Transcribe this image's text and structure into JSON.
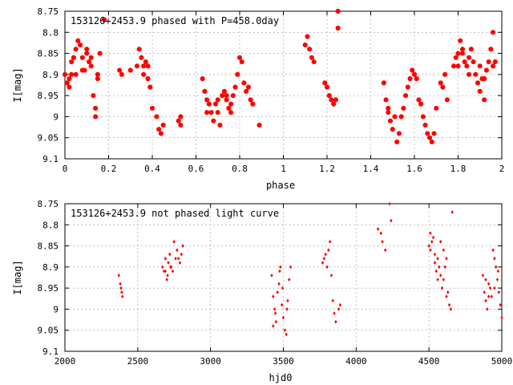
{
  "chart_data": [
    {
      "type": "scatter",
      "title": "153126+2453.9 phased with P=458.0day",
      "xlabel": "phase",
      "ylabel": "I[mag]",
      "xlim": [
        0,
        2
      ],
      "ylim": [
        9.1,
        8.75
      ],
      "y_inverted": true,
      "xticks": [
        "0",
        "0.2",
        "0.4",
        "0.6",
        "0.8",
        "1",
        "1.2",
        "1.4",
        "1.6",
        "1.8",
        "2"
      ],
      "yticks": [
        "8.75",
        "8.8",
        "8.85",
        "8.9",
        "8.95",
        "9",
        "9.05",
        "9.1"
      ],
      "grid": true,
      "marker_color": "#ff0000",
      "points": [
        [
          0.0,
          8.9
        ],
        [
          0.01,
          8.92
        ],
        [
          0.02,
          8.93
        ],
        [
          0.02,
          8.91
        ],
        [
          0.03,
          8.87
        ],
        [
          0.04,
          8.86
        ],
        [
          0.05,
          8.84
        ],
        [
          0.06,
          8.82
        ],
        [
          0.07,
          8.83
        ],
        [
          0.08,
          8.86
        ],
        [
          0.09,
          8.89
        ],
        [
          0.1,
          8.85
        ],
        [
          0.11,
          8.87
        ],
        [
          0.12,
          8.86
        ],
        [
          0.13,
          8.95
        ],
        [
          0.14,
          8.98
        ],
        [
          0.14,
          9.0
        ],
        [
          0.15,
          8.91
        ],
        [
          0.16,
          8.85
        ],
        [
          0.18,
          8.77
        ],
        [
          0.03,
          8.9
        ],
        [
          0.05,
          8.9
        ],
        [
          0.08,
          8.89
        ],
        [
          0.1,
          8.84
        ],
        [
          0.12,
          8.88
        ],
        [
          0.15,
          8.9
        ],
        [
          0.3,
          8.89
        ],
        [
          0.33,
          8.88
        ],
        [
          0.34,
          8.84
        ],
        [
          0.35,
          8.86
        ],
        [
          0.36,
          8.88
        ],
        [
          0.37,
          8.87
        ],
        [
          0.38,
          8.91
        ],
        [
          0.39,
          8.93
        ],
        [
          0.4,
          8.98
        ],
        [
          0.42,
          9.0
        ],
        [
          0.43,
          9.03
        ],
        [
          0.44,
          9.04
        ],
        [
          0.45,
          9.02
        ],
        [
          0.36,
          8.9
        ],
        [
          0.38,
          8.88
        ],
        [
          0.25,
          8.89
        ],
        [
          0.26,
          8.9
        ],
        [
          0.52,
          9.01
        ],
        [
          0.53,
          9.02
        ],
        [
          0.53,
          9.0
        ],
        [
          0.63,
          8.91
        ],
        [
          0.64,
          8.94
        ],
        [
          0.65,
          8.96
        ],
        [
          0.66,
          8.97
        ],
        [
          0.67,
          8.99
        ],
        [
          0.68,
          9.01
        ],
        [
          0.69,
          8.97
        ],
        [
          0.7,
          8.99
        ],
        [
          0.71,
          9.02
        ],
        [
          0.72,
          8.95
        ],
        [
          0.73,
          8.94
        ],
        [
          0.74,
          8.96
        ],
        [
          0.75,
          8.98
        ],
        [
          0.76,
          8.97
        ],
        [
          0.77,
          8.95
        ],
        [
          0.78,
          8.93
        ],
        [
          0.79,
          8.9
        ],
        [
          0.8,
          8.86
        ],
        [
          0.81,
          8.87
        ],
        [
          0.82,
          8.92
        ],
        [
          0.83,
          8.94
        ],
        [
          0.84,
          8.93
        ],
        [
          0.85,
          8.96
        ],
        [
          0.86,
          8.97
        ],
        [
          0.89,
          9.02
        ],
        [
          0.65,
          8.99
        ],
        [
          0.7,
          8.96
        ],
        [
          0.74,
          8.95
        ],
        [
          0.76,
          8.99
        ],
        [
          1.1,
          8.83
        ],
        [
          1.11,
          8.81
        ],
        [
          1.12,
          8.84
        ],
        [
          1.13,
          8.86
        ],
        [
          1.14,
          8.87
        ],
        [
          1.19,
          8.92
        ],
        [
          1.2,
          8.93
        ],
        [
          1.21,
          8.95
        ],
        [
          1.22,
          8.96
        ],
        [
          1.23,
          8.97
        ],
        [
          1.24,
          8.96
        ],
        [
          1.25,
          8.75
        ],
        [
          1.25,
          8.79
        ],
        [
          1.46,
          8.92
        ],
        [
          1.47,
          8.96
        ],
        [
          1.48,
          8.99
        ],
        [
          1.49,
          9.01
        ],
        [
          1.5,
          9.03
        ],
        [
          1.51,
          9.0
        ],
        [
          1.52,
          9.06
        ],
        [
          1.53,
          9.04
        ],
        [
          1.54,
          9.0
        ],
        [
          1.55,
          8.98
        ],
        [
          1.56,
          8.95
        ],
        [
          1.57,
          8.93
        ],
        [
          1.58,
          8.91
        ],
        [
          1.59,
          8.89
        ],
        [
          1.6,
          8.9
        ],
        [
          1.61,
          8.91
        ],
        [
          1.62,
          8.96
        ],
        [
          1.63,
          8.97
        ],
        [
          1.64,
          9.0
        ],
        [
          1.65,
          9.02
        ],
        [
          1.66,
          9.04
        ],
        [
          1.67,
          9.05
        ],
        [
          1.68,
          9.06
        ],
        [
          1.69,
          9.04
        ],
        [
          1.7,
          8.98
        ],
        [
          1.72,
          8.92
        ],
        [
          1.73,
          8.93
        ],
        [
          1.74,
          8.9
        ],
        [
          1.75,
          8.96
        ],
        [
          1.48,
          8.98
        ],
        [
          1.78,
          8.88
        ],
        [
          1.79,
          8.86
        ],
        [
          1.8,
          8.85
        ],
        [
          1.81,
          8.82
        ],
        [
          1.82,
          8.84
        ],
        [
          1.83,
          8.87
        ],
        [
          1.84,
          8.88
        ],
        [
          1.85,
          8.86
        ],
        [
          1.86,
          8.84
        ],
        [
          1.87,
          8.87
        ],
        [
          1.88,
          8.9
        ],
        [
          1.89,
          8.92
        ],
        [
          1.9,
          8.94
        ],
        [
          1.91,
          8.91
        ],
        [
          1.92,
          8.96
        ],
        [
          1.93,
          8.89
        ],
        [
          1.94,
          8.87
        ],
        [
          1.95,
          8.84
        ],
        [
          1.96,
          8.8
        ],
        [
          1.97,
          8.87
        ],
        [
          1.8,
          8.88
        ],
        [
          1.82,
          8.85
        ],
        [
          1.85,
          8.9
        ],
        [
          1.9,
          8.88
        ],
        [
          1.92,
          8.91
        ],
        [
          1.96,
          8.88
        ]
      ]
    },
    {
      "type": "scatter",
      "title": "153126+2453.9 not phased light curve",
      "xlabel": "hjd0",
      "ylabel": "I[mag]",
      "xlim": [
        2000,
        5000
      ],
      "ylim": [
        9.1,
        8.75
      ],
      "y_inverted": true,
      "xticks": [
        "2000",
        "2500",
        "3000",
        "3500",
        "4000",
        "4500",
        "5000"
      ],
      "yticks": [
        "8.75",
        "8.8",
        "8.85",
        "8.9",
        "8.95",
        "9",
        "9.05",
        "9.1"
      ],
      "grid": true,
      "marker_color": "#ff0000",
      "points": [
        [
          2370,
          8.92
        ],
        [
          2380,
          8.94
        ],
        [
          2385,
          8.95
        ],
        [
          2390,
          8.96
        ],
        [
          2395,
          8.97
        ],
        [
          2670,
          8.9
        ],
        [
          2680,
          8.91
        ],
        [
          2690,
          8.88
        ],
        [
          2700,
          8.93
        ],
        [
          2710,
          8.89
        ],
        [
          2720,
          8.87
        ],
        [
          2730,
          8.9
        ],
        [
          2740,
          8.91
        ],
        [
          2750,
          8.84
        ],
        [
          2760,
          8.88
        ],
        [
          2770,
          8.86
        ],
        [
          2780,
          8.88
        ],
        [
          2790,
          8.89
        ],
        [
          2800,
          8.87
        ],
        [
          2810,
          8.85
        ],
        [
          2690,
          8.91
        ],
        [
          2705,
          8.92
        ],
        [
          2725,
          8.9
        ],
        [
          3420,
          8.92
        ],
        [
          3430,
          8.97
        ],
        [
          3440,
          9.0
        ],
        [
          3450,
          9.03
        ],
        [
          3460,
          8.96
        ],
        [
          3470,
          8.94
        ],
        [
          3480,
          8.9
        ],
        [
          3490,
          8.99
        ],
        [
          3500,
          9.02
        ],
        [
          3510,
          9.05
        ],
        [
          3520,
          9.06
        ],
        [
          3530,
          8.98
        ],
        [
          3540,
          8.93
        ],
        [
          3550,
          8.9
        ],
        [
          3430,
          9.04
        ],
        [
          3445,
          9.01
        ],
        [
          3475,
          8.91
        ],
        [
          3495,
          8.95
        ],
        [
          3525,
          9.0
        ],
        [
          3770,
          8.89
        ],
        [
          3780,
          8.88
        ],
        [
          3790,
          8.87
        ],
        [
          3800,
          8.9
        ],
        [
          3810,
          8.86
        ],
        [
          3820,
          8.84
        ],
        [
          3830,
          8.92
        ],
        [
          3840,
          8.98
        ],
        [
          3850,
          9.01
        ],
        [
          3860,
          9.03
        ],
        [
          3880,
          9.0
        ],
        [
          3890,
          8.99
        ],
        [
          4150,
          8.81
        ],
        [
          4170,
          8.82
        ],
        [
          4180,
          8.84
        ],
        [
          4200,
          8.86
        ],
        [
          4230,
          8.75
        ],
        [
          4240,
          8.79
        ],
        [
          4500,
          8.85
        ],
        [
          4510,
          8.86
        ],
        [
          4520,
          8.84
        ],
        [
          4530,
          8.83
        ],
        [
          4540,
          8.89
        ],
        [
          4550,
          8.91
        ],
        [
          4560,
          8.88
        ],
        [
          4570,
          8.9
        ],
        [
          4580,
          8.92
        ],
        [
          4590,
          8.95
        ],
        [
          4600,
          8.93
        ],
        [
          4610,
          8.9
        ],
        [
          4620,
          8.88
        ],
        [
          4630,
          8.96
        ],
        [
          4640,
          8.99
        ],
        [
          4650,
          9.0
        ],
        [
          4660,
          8.77
        ],
        [
          4510,
          8.82
        ],
        [
          4540,
          8.87
        ],
        [
          4560,
          8.93
        ],
        [
          4580,
          8.84
        ],
        [
          4600,
          8.86
        ],
        [
          4620,
          8.97
        ],
        [
          4870,
          8.92
        ],
        [
          4880,
          8.96
        ],
        [
          4890,
          8.98
        ],
        [
          4900,
          9.0
        ],
        [
          4910,
          8.94
        ],
        [
          4920,
          8.95
        ],
        [
          4930,
          8.97
        ],
        [
          4940,
          8.86
        ],
        [
          4950,
          8.88
        ],
        [
          4960,
          8.9
        ],
        [
          4970,
          8.93
        ],
        [
          4980,
          8.96
        ],
        [
          4990,
          8.99
        ],
        [
          5000,
          9.02
        ],
        [
          4890,
          8.93
        ],
        [
          4910,
          8.97
        ],
        [
          4950,
          8.95
        ],
        [
          4975,
          8.91
        ]
      ]
    }
  ]
}
